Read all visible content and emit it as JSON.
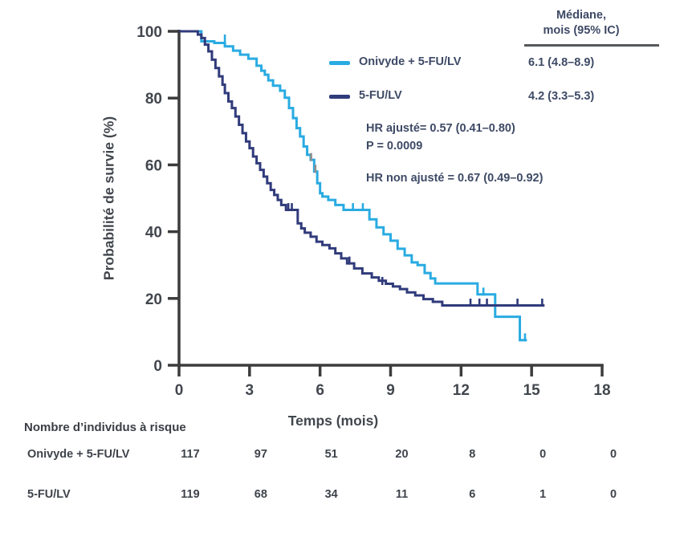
{
  "colors": {
    "onivyde": "#29abe2",
    "fulv": "#303b7b",
    "axis": "#3c3c3c",
    "tick_text": "#42474e",
    "annotation_text": "#3e4a66",
    "censor_gray": "#8e8e8e",
    "rule": "#55585c"
  },
  "chart_data": {
    "type": "line",
    "subtype": "kaplan-meier-step",
    "title": "",
    "xlabel": "Temps (mois)",
    "ylabel": "Probabilité de survie (%)",
    "xlim": [
      0,
      18
    ],
    "ylim": [
      0,
      100
    ],
    "x_ticks": [
      0,
      3,
      6,
      9,
      12,
      15,
      18
    ],
    "y_ticks": [
      0,
      20,
      40,
      60,
      80,
      100
    ],
    "grid": false,
    "legend_position": "upper right",
    "median_header": {
      "line1": "Médiane,",
      "line2": "mois (95% IC)"
    },
    "series": [
      {
        "name": "Onivyde + 5-FU/LV",
        "color": "#29abe2",
        "median": "6.1 (4.8–8.9)",
        "end": 14.8,
        "steps": [
          [
            0,
            100
          ],
          [
            0.95,
            97
          ],
          [
            1.5,
            96.5
          ],
          [
            1.95,
            95.5
          ],
          [
            2.3,
            94.2
          ],
          [
            2.6,
            93
          ],
          [
            2.95,
            91.8
          ],
          [
            3.3,
            89.7
          ],
          [
            3.5,
            88.2
          ],
          [
            3.65,
            87
          ],
          [
            3.8,
            85.3
          ],
          [
            4.0,
            83.7
          ],
          [
            4.3,
            82.2
          ],
          [
            4.5,
            80.1
          ],
          [
            4.68,
            77
          ],
          [
            4.85,
            74
          ],
          [
            5.0,
            71
          ],
          [
            5.15,
            68.5
          ],
          [
            5.3,
            65.5
          ],
          [
            5.45,
            63
          ],
          [
            5.6,
            61.5
          ],
          [
            5.75,
            58
          ],
          [
            5.88,
            54.5
          ],
          [
            6.0,
            51.5
          ],
          [
            6.1,
            50.5
          ],
          [
            6.35,
            49.5
          ],
          [
            6.65,
            48
          ],
          [
            7.0,
            46.5
          ],
          [
            8.1,
            43.7
          ],
          [
            8.4,
            41.3
          ],
          [
            8.7,
            39.2
          ],
          [
            9.0,
            37.3
          ],
          [
            9.3,
            34.9
          ],
          [
            9.6,
            32.9
          ],
          [
            9.9,
            30.8
          ],
          [
            10.15,
            30
          ],
          [
            10.45,
            27.6
          ],
          [
            10.7,
            26
          ],
          [
            10.9,
            24.5
          ],
          [
            12.7,
            21.2
          ],
          [
            13.45,
            14.5
          ],
          [
            14.5,
            7.5
          ]
        ],
        "censors": [
          [
            1.95,
            97
          ],
          [
            7.4,
            46.5
          ],
          [
            7.82,
            46.5
          ],
          [
            12.95,
            21.2
          ],
          [
            14.72,
            7.5
          ]
        ],
        "censors_gray": [
          [
            5.62,
            61.5
          ],
          [
            5.8,
            58
          ]
        ]
      },
      {
        "name": "5-FU/LV",
        "color": "#303b7b",
        "median": "4.2 (3.3–5.3)",
        "end": 15.55,
        "steps": [
          [
            0,
            100
          ],
          [
            0.8,
            99
          ],
          [
            0.95,
            98
          ],
          [
            1.1,
            96
          ],
          [
            1.25,
            94
          ],
          [
            1.4,
            91.5
          ],
          [
            1.55,
            89
          ],
          [
            1.7,
            86.5
          ],
          [
            1.85,
            84
          ],
          [
            1.95,
            81.5
          ],
          [
            2.1,
            79
          ],
          [
            2.25,
            77
          ],
          [
            2.4,
            74.5
          ],
          [
            2.55,
            72
          ],
          [
            2.7,
            69.5
          ],
          [
            2.85,
            67
          ],
          [
            3.0,
            65
          ],
          [
            3.15,
            62.5
          ],
          [
            3.3,
            60.5
          ],
          [
            3.45,
            58.5
          ],
          [
            3.6,
            56.5
          ],
          [
            3.75,
            54.5
          ],
          [
            3.9,
            52.5
          ],
          [
            4.05,
            51
          ],
          [
            4.2,
            49.5
          ],
          [
            4.35,
            48
          ],
          [
            4.55,
            46.5
          ],
          [
            5.05,
            42.5
          ],
          [
            5.2,
            41
          ],
          [
            5.35,
            39.7
          ],
          [
            5.6,
            38.5
          ],
          [
            5.85,
            37
          ],
          [
            6.1,
            36
          ],
          [
            6.4,
            35
          ],
          [
            6.65,
            33.5
          ],
          [
            6.9,
            32
          ],
          [
            7.15,
            30.5
          ],
          [
            7.45,
            29
          ],
          [
            7.8,
            27.5
          ],
          [
            8.2,
            26.3
          ],
          [
            8.5,
            25.3
          ],
          [
            8.8,
            24.4
          ],
          [
            9.1,
            23.6
          ],
          [
            9.4,
            22.8
          ],
          [
            9.7,
            21.8
          ],
          [
            10.05,
            20.9
          ],
          [
            10.4,
            19.8
          ],
          [
            10.8,
            19
          ],
          [
            11.2,
            17.9
          ]
        ],
        "censors": [
          [
            4.65,
            46.5
          ],
          [
            4.8,
            46.5
          ],
          [
            7.25,
            30.5
          ],
          [
            8.65,
            24.4
          ],
          [
            12.4,
            17.9
          ],
          [
            12.78,
            17.9
          ],
          [
            13.1,
            17.9
          ],
          [
            14.4,
            17.9
          ],
          [
            15.45,
            17.9
          ]
        ],
        "censors_gray": []
      }
    ],
    "annotations": {
      "hr_adjusted": "HR ajusté= 0.57 (0.41–0.80)",
      "p_value": "P = 0.0009",
      "hr_unadjusted": "HR non ajusté = 0.67 (0.49–0.92)"
    },
    "risk_table": {
      "title": "Nombre d’individus à risque",
      "time_points": [
        0,
        3,
        6,
        9,
        12,
        15,
        18
      ],
      "rows": [
        {
          "label": "Onivyde + 5-FU/LV",
          "values": [
            "117",
            "97",
            "51",
            "20",
            "8",
            "0",
            "0"
          ]
        },
        {
          "label": "5-FU/LV",
          "values": [
            "119",
            "68",
            "34",
            "11",
            "6",
            "1",
            "0"
          ]
        }
      ]
    }
  }
}
